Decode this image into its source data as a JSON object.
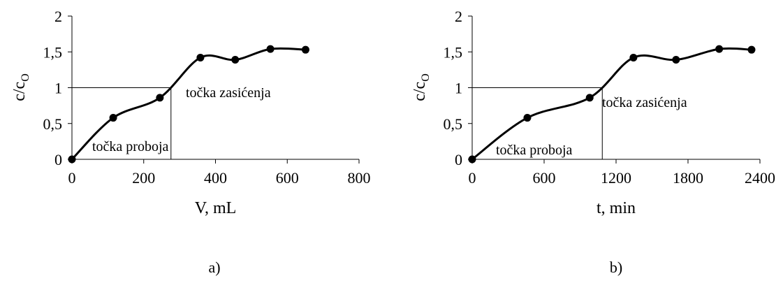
{
  "chart_data": [
    {
      "type": "line",
      "panel_label": "a)",
      "xlabel": "V, mL",
      "ylabel_main": "c/c",
      "ylabel_sub": "O",
      "xlim": [
        0,
        800
      ],
      "ylim": [
        0,
        2
      ],
      "x_ticks": [
        "0",
        "200",
        "400",
        "600",
        "800"
      ],
      "y_ticks": [
        "0",
        "0,5",
        "1",
        "1,5",
        "2"
      ],
      "grid": false,
      "series": [
        {
          "x": [
            0,
            115,
            245,
            358,
            455,
            553,
            651
          ],
          "y": [
            0,
            0.58,
            0.86,
            1.42,
            1.39,
            1.54,
            1.53
          ]
        }
      ],
      "reference_lines": {
        "y": 1.0,
        "x": 276
      },
      "annotations": [
        "točka proboja",
        "točka zasićenja"
      ]
    },
    {
      "type": "line",
      "panel_label": "b)",
      "xlabel": "t, min",
      "ylabel_main": "c/c",
      "ylabel_sub": "O",
      "xlim": [
        0,
        2400
      ],
      "ylim": [
        0,
        2
      ],
      "x_ticks": [
        "0",
        "600",
        "1200",
        "1800",
        "2400"
      ],
      "y_ticks": [
        "0",
        "0,5",
        "1",
        "1,5",
        "2"
      ],
      "grid": false,
      "series": [
        {
          "x": [
            0,
            460,
            980,
            1345,
            1700,
            2060,
            2330
          ],
          "y": [
            0,
            0.58,
            0.86,
            1.42,
            1.39,
            1.54,
            1.53
          ]
        }
      ],
      "reference_lines": {
        "y": 1.0,
        "x": 1085
      },
      "annotations": [
        "točka proboja",
        "točka zasićenja"
      ]
    }
  ]
}
